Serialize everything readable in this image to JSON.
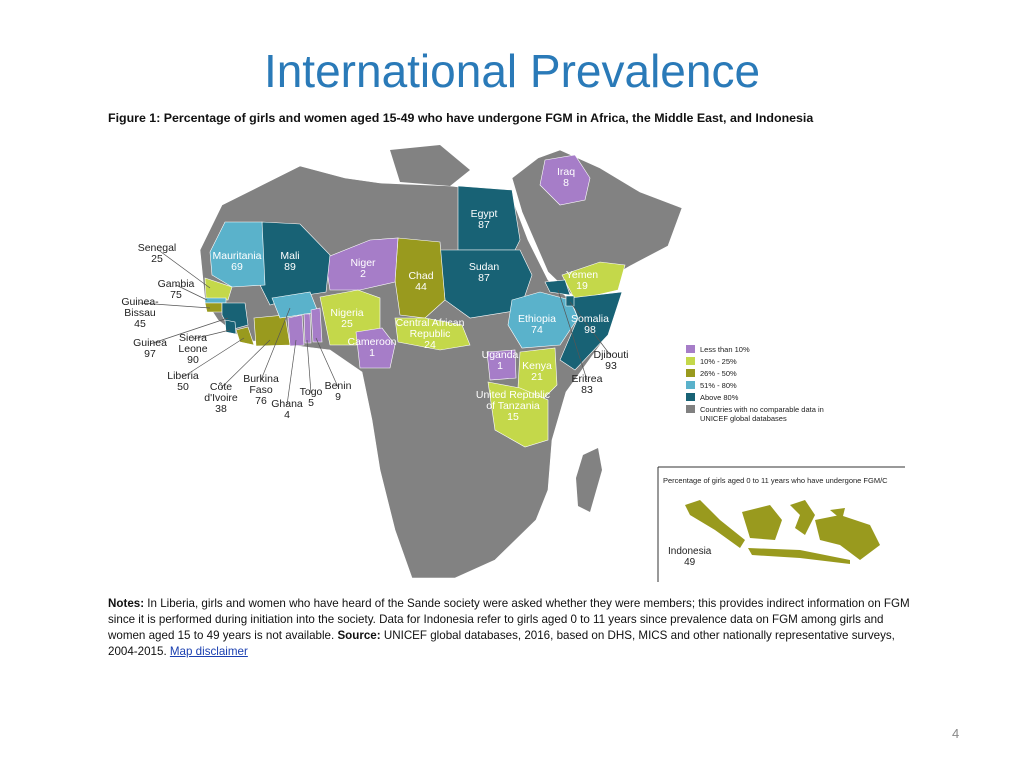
{
  "title": "International Prevalence",
  "figure_title": "Figure 1: Percentage of girls and women aged 15-49 who have undergone FGM in Africa, the Middle East, and Indonesia",
  "countries": [
    {
      "name": "Iraq",
      "value": 8,
      "color": "#a67dc8"
    },
    {
      "name": "Egypt",
      "value": 87,
      "color": "#186275"
    },
    {
      "name": "Sudan",
      "value": 87,
      "color": "#186275"
    },
    {
      "name": "Yemen",
      "value": 19,
      "color": "#c4d84a"
    },
    {
      "name": "Ethiopia",
      "value": 74,
      "color": "#5ab2cb"
    },
    {
      "name": "Somalia",
      "value": 98,
      "color": "#186275"
    },
    {
      "name": "Djibouti",
      "value": 93,
      "color": "#186275"
    },
    {
      "name": "Eritrea",
      "value": 83,
      "color": "#186275"
    },
    {
      "name": "Kenya",
      "value": 21,
      "color": "#c4d84a"
    },
    {
      "name": "Uganda",
      "value": 1,
      "color": "#a67dc8"
    },
    {
      "name": "United Republic of Tanzania",
      "value": 15,
      "color": "#c4d84a"
    },
    {
      "name": "Chad",
      "value": 44,
      "color": "#999a1e"
    },
    {
      "name": "Niger",
      "value": 2,
      "color": "#a67dc8"
    },
    {
      "name": "Mali",
      "value": 89,
      "color": "#186275"
    },
    {
      "name": "Mauritania",
      "value": 69,
      "color": "#5ab2cb"
    },
    {
      "name": "Nigeria",
      "value": 25,
      "color": "#c4d84a"
    },
    {
      "name": "Central African Republic",
      "value": 24,
      "color": "#c4d84a"
    },
    {
      "name": "Cameroon",
      "value": 1,
      "color": "#a67dc8"
    },
    {
      "name": "Senegal",
      "value": 25,
      "color": "#c4d84a"
    },
    {
      "name": "Gambia",
      "value": 75,
      "color": "#5ab2cb"
    },
    {
      "name": "Guinea-Bissau",
      "value": 45,
      "color": "#999a1e"
    },
    {
      "name": "Guinea",
      "value": 97,
      "color": "#186275"
    },
    {
      "name": "Sierra Leone",
      "value": 90,
      "color": "#186275"
    },
    {
      "name": "Liberia",
      "value": 50,
      "color": "#999a1e"
    },
    {
      "name": "Côte d'Ivoire",
      "value": 38,
      "color": "#999a1e"
    },
    {
      "name": "Burkina Faso",
      "value": 76,
      "color": "#5ab2cb"
    },
    {
      "name": "Ghana",
      "value": 4,
      "color": "#a67dc8"
    },
    {
      "name": "Togo",
      "value": 5,
      "color": "#a67dc8"
    },
    {
      "name": "Benin",
      "value": 9,
      "color": "#a67dc8"
    }
  ],
  "legend": [
    {
      "label": "Less than 10%",
      "color": "#a67dc8"
    },
    {
      "label": "10% - 25%",
      "color": "#c4d84a"
    },
    {
      "label": "26% - 50%",
      "color": "#999a1e"
    },
    {
      "label": "51% - 80%",
      "color": "#5ab2cb"
    },
    {
      "label": "Above 80%",
      "color": "#186275"
    },
    {
      "label": "Countries with no comparable data in UNICEF global databases",
      "color": "#808080"
    }
  ],
  "inset": {
    "title": "Percentage of girls aged 0 to 11 years who have undergone FGM/C",
    "name": "Indonesia",
    "value": 49,
    "color": "#999a1e"
  },
  "notes": [
    {
      "text": "Notes:",
      "bold": true,
      "link": false
    },
    {
      "text": " In Liberia, girls and women who have heard of the Sande society were asked whether they were members; this provides indirect information on FGM since it is performed during initiation into the society. Data for Indonesia refer to girls aged 0 to 11 years since prevalence data on FGM among girls and women aged 15 to 49 years is not available. ",
      "bold": false,
      "link": false
    },
    {
      "text": "Source:",
      "bold": true,
      "link": false
    },
    {
      "text": " UNICEF global databases, 2016, based on DHS, MICS and other nationally representative surveys, 2004-2015. ",
      "bold": false,
      "link": false
    },
    {
      "text": "Map disclaimer",
      "bold": false,
      "link": true
    }
  ],
  "page_number": "4"
}
